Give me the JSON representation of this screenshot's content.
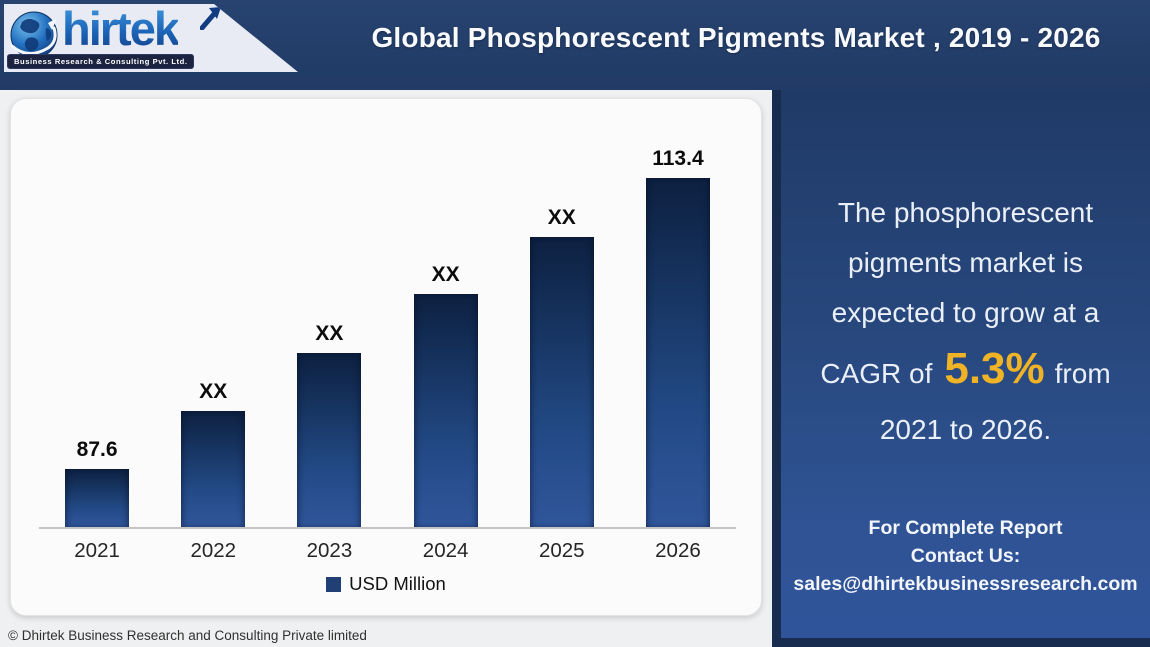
{
  "header": {
    "title": "Global Phosphorescent Pigments Market , 2019 - 2026",
    "logo": {
      "brand_full": "Dhirtek",
      "brand_wordmark": "hirtek",
      "tagline": "Business Research & Consulting Pvt. Ltd."
    }
  },
  "chart_data": {
    "type": "bar",
    "title": "Global Phosphorescent Pigments Market , 2019 - 2026",
    "categories": [
      "2021",
      "2022",
      "2023",
      "2024",
      "2025",
      "2026"
    ],
    "series": [
      {
        "name": "USD Million",
        "values": [
          87.6,
          92.8,
          97.9,
          103.1,
          108.2,
          113.4
        ]
      }
    ],
    "values": [
      87.6,
      92.8,
      97.9,
      103.1,
      108.2,
      113.4
    ],
    "display_labels": [
      "87.6",
      "XX",
      "XX",
      "XX",
      "XX",
      "113.4"
    ],
    "ylabel": "USD Million",
    "xlabel": "",
    "legend": {
      "position": "bottom",
      "label": "USD Million"
    },
    "value_axis": {
      "visible": false,
      "min": 82.5
    },
    "grid": false
  },
  "side_panel": {
    "summary_lines": [
      "The phosphorescent",
      "pigments market is",
      "expected to grow at a"
    ],
    "cagr_line": {
      "prefix": "CAGR of",
      "highlight": "5.3%",
      "suffix": "from"
    },
    "last_line": "2021 to 2026.",
    "contact": [
      "For Complete Report",
      "Contact Us:",
      "sales@dhirtekbusinessresearch.com"
    ]
  },
  "footer": {
    "copyright": "© Dhirtek Business Research and Consulting Private limited"
  },
  "colors": {
    "header_navy": "#213a66",
    "panel_blue_bottom": "#30549a",
    "panel_dark_edge": "#182c50",
    "bar_gradient_top": "#0d2040",
    "bar_gradient_bottom": "#30569b",
    "accent_gold": "#f0b325",
    "card_bg": "#fbfbfb",
    "page_bg": "#eef0f1",
    "logo_plate": "#e9ebf4"
  }
}
